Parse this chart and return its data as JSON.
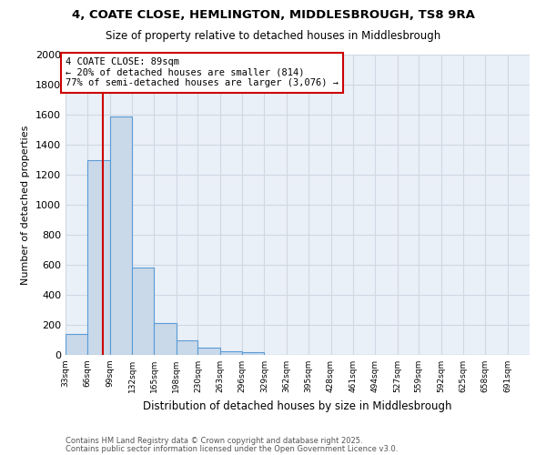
{
  "title_line1": "4, COATE CLOSE, HEMLINGTON, MIDDLESBROUGH, TS8 9RA",
  "title_line2": "Size of property relative to detached houses in Middlesbrough",
  "xlabel": "Distribution of detached houses by size in Middlesbrough",
  "ylabel": "Number of detached properties",
  "footnote1": "Contains HM Land Registry data © Crown copyright and database right 2025.",
  "footnote2": "Contains public sector information licensed under the Open Government Licence v3.0.",
  "bin_labels": [
    "33sqm",
    "66sqm",
    "99sqm",
    "132sqm",
    "165sqm",
    "198sqm",
    "230sqm",
    "263sqm",
    "296sqm",
    "329sqm",
    "362sqm",
    "395sqm",
    "428sqm",
    "461sqm",
    "494sqm",
    "527sqm",
    "559sqm",
    "592sqm",
    "625sqm",
    "658sqm",
    "691sqm"
  ],
  "bin_edges": [
    33,
    66,
    99,
    132,
    165,
    198,
    230,
    263,
    296,
    329,
    362,
    395,
    428,
    461,
    494,
    527,
    559,
    592,
    625,
    658,
    691,
    724
  ],
  "bar_heights": [
    140,
    1300,
    1590,
    580,
    215,
    100,
    50,
    25,
    20,
    0,
    0,
    0,
    0,
    0,
    0,
    0,
    0,
    0,
    0,
    0,
    0
  ],
  "bar_color": "#c9d9ea",
  "bar_edge_color": "#5b9bd5",
  "grid_color": "#d0d8e4",
  "background_color": "#eaf0f8",
  "property_size": 89,
  "property_label": "4 COATE CLOSE: 89sqm",
  "annotation_line1": "← 20% of detached houses are smaller (814)",
  "annotation_line2": "77% of semi-detached houses are larger (3,076) →",
  "vline_color": "#cc0000",
  "annotation_box_color": "#cc0000",
  "ylim": [
    0,
    2000
  ],
  "yticks": [
    0,
    200,
    400,
    600,
    800,
    1000,
    1200,
    1400,
    1600,
    1800,
    2000
  ]
}
